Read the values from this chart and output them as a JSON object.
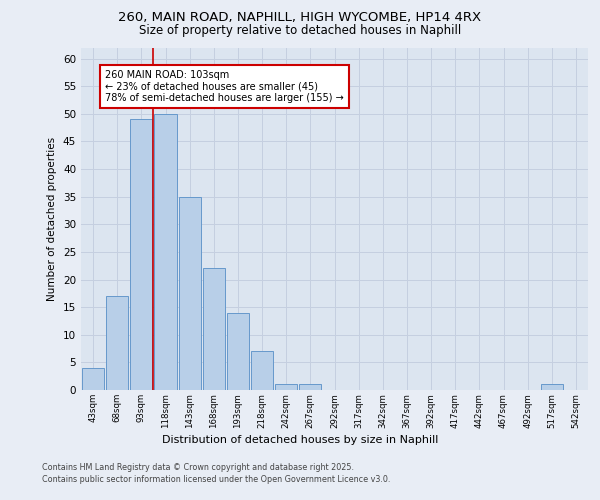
{
  "title_line1": "260, MAIN ROAD, NAPHILL, HIGH WYCOMBE, HP14 4RX",
  "title_line2": "Size of property relative to detached houses in Naphill",
  "xlabel": "Distribution of detached houses by size in Naphill",
  "ylabel": "Number of detached properties",
  "bar_labels": [
    "43sqm",
    "68sqm",
    "93sqm",
    "118sqm",
    "143sqm",
    "168sqm",
    "193sqm",
    "218sqm",
    "242sqm",
    "267sqm",
    "292sqm",
    "317sqm",
    "342sqm",
    "367sqm",
    "392sqm",
    "417sqm",
    "442sqm",
    "467sqm",
    "492sqm",
    "517sqm",
    "542sqm"
  ],
  "bar_values": [
    4,
    17,
    49,
    50,
    35,
    22,
    14,
    7,
    1,
    1,
    0,
    0,
    0,
    0,
    0,
    0,
    0,
    0,
    0,
    1,
    0
  ],
  "bar_color": "#b8cfe8",
  "bar_edgecolor": "#6699cc",
  "background_color": "#e8edf5",
  "plot_bg_color": "#dce5f0",
  "ylim": [
    0,
    62
  ],
  "yticks": [
    0,
    5,
    10,
    15,
    20,
    25,
    30,
    35,
    40,
    45,
    50,
    55,
    60
  ],
  "vline_x": 2.5,
  "vline_color": "#cc0000",
  "annotation_text": "260 MAIN ROAD: 103sqm\n← 23% of detached houses are smaller (45)\n78% of semi-detached houses are larger (155) →",
  "annotation_box_color": "white",
  "annotation_box_edgecolor": "#cc0000",
  "footer": "Contains HM Land Registry data © Crown copyright and database right 2025.\nContains public sector information licensed under the Open Government Licence v3.0.",
  "grid_color": "#c5cfe0"
}
